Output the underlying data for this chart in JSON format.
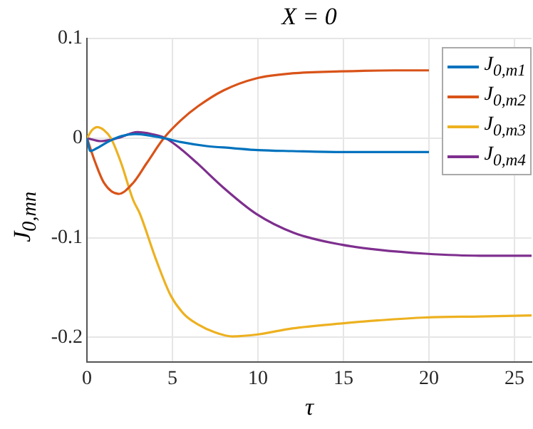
{
  "chart_data": {
    "type": "line",
    "title": "X = 0",
    "xlabel": "τ",
    "ylabel": "J$_{0,mn}$",
    "xlim": [
      0,
      26
    ],
    "ylim": [
      -0.225,
      0.1
    ],
    "xticks": [
      0,
      5,
      10,
      15,
      20,
      25
    ],
    "yticks": [
      -0.2,
      -0.1,
      0,
      0.1
    ],
    "grid": true,
    "legend": "top right",
    "marker": "none",
    "line_style": "solid",
    "series": [
      {
        "name": "J$_{0,m1}$",
        "color": "#0072bd",
        "x": [
          0,
          0.2,
          0.6,
          1.2,
          2,
          2.8,
          3.5,
          4.5,
          5.5,
          7,
          8.5,
          10,
          12,
          15,
          20
        ],
        "values": [
          0,
          -0.013,
          -0.01,
          -0.004,
          0.002,
          0.004,
          0.003,
          0,
          -0.004,
          -0.008,
          -0.01,
          -0.012,
          -0.013,
          -0.014,
          -0.014
        ]
      },
      {
        "name": "J$_{0,m2}$",
        "color": "#d95319",
        "x": [
          0,
          0.5,
          1,
          1.85,
          2.7,
          3.5,
          4.5,
          5.5,
          6.5,
          8,
          9.9,
          12,
          14.8,
          18,
          20
        ],
        "values": [
          0,
          -0.025,
          -0.045,
          -0.056,
          -0.045,
          -0.025,
          0,
          0.018,
          0.032,
          0.048,
          0.06,
          0.065,
          0.067,
          0.068,
          0.068
        ]
      },
      {
        "name": "J$_{0,m3}$",
        "color": "#edb120",
        "x": [
          0,
          0.3,
          0.6,
          1,
          1.4,
          2,
          2.7,
          3.1,
          4,
          4.9,
          5.7,
          6.5,
          7.5,
          8.5,
          10,
          12,
          14.9,
          17,
          19.8,
          23,
          26
        ],
        "values": [
          0,
          0.008,
          0.011,
          0.008,
          0,
          -0.025,
          -0.062,
          -0.076,
          -0.12,
          -0.158,
          -0.177,
          -0.187,
          -0.195,
          -0.199,
          -0.197,
          -0.191,
          -0.186,
          -0.183,
          -0.18,
          -0.179,
          -0.178
        ]
      },
      {
        "name": "J$_{0,m4}$",
        "color": "#7e2f8e",
        "x": [
          0,
          0.8,
          1.8,
          2.95,
          3.8,
          4.6,
          5.5,
          6.5,
          8,
          9.9,
          12.1,
          14.9,
          17,
          19.8,
          23,
          26
        ],
        "values": [
          0,
          -0.003,
          0,
          0.006,
          0.004,
          0,
          -0.011,
          -0.026,
          -0.05,
          -0.076,
          -0.095,
          -0.107,
          -0.112,
          -0.116,
          -0.118,
          -0.118
        ]
      }
    ]
  }
}
